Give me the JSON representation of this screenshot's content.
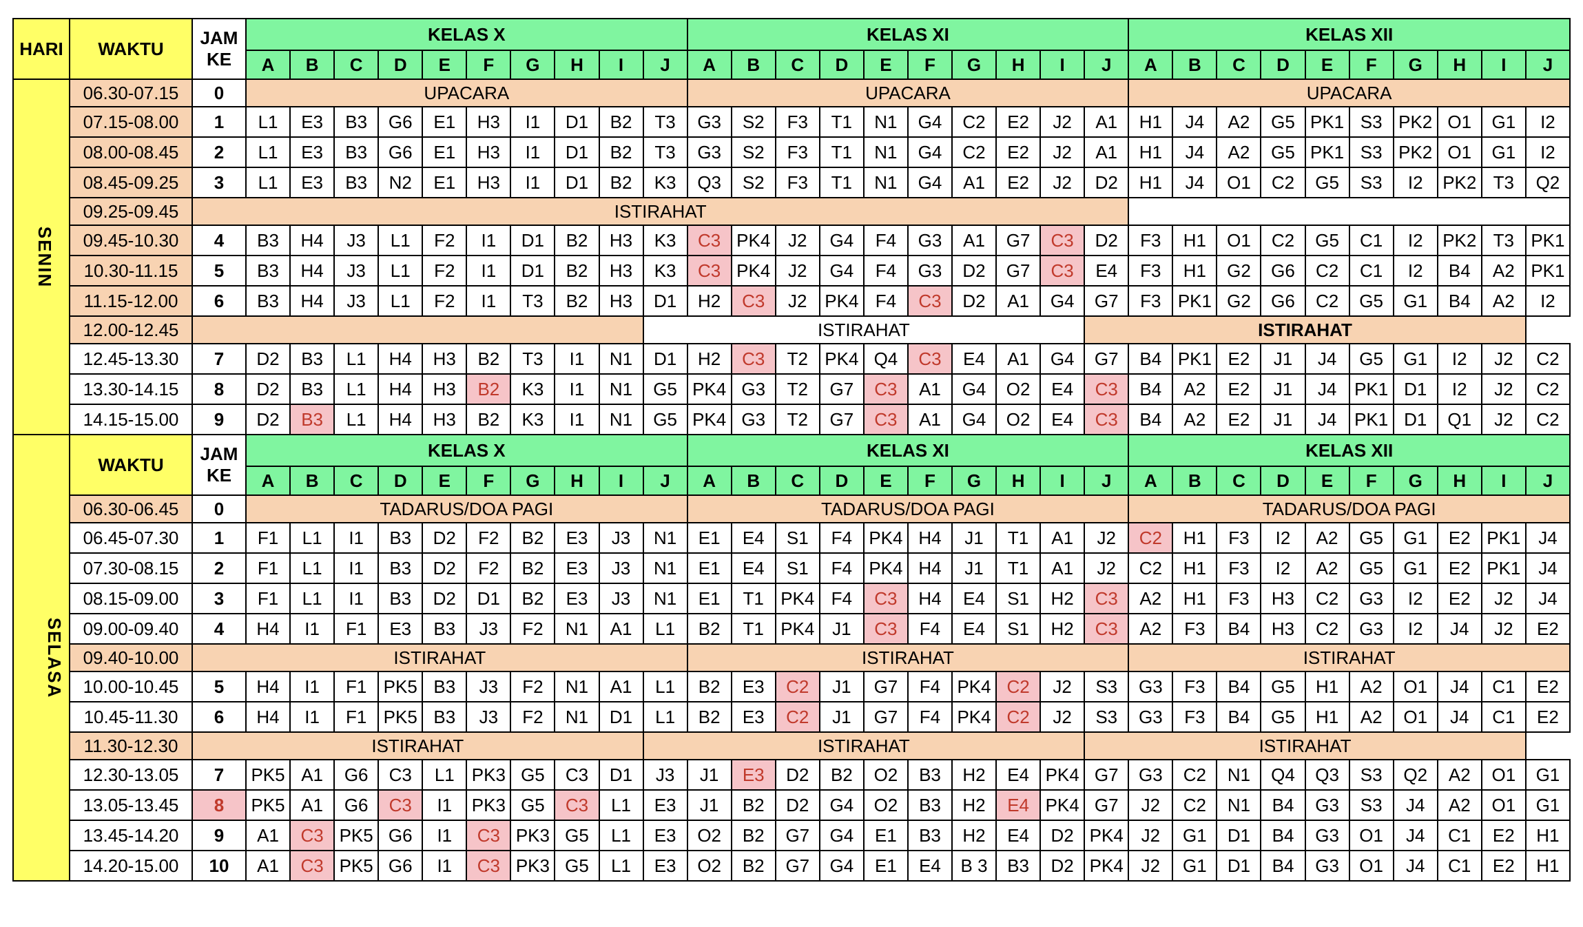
{
  "headers": {
    "hari": "HARI",
    "waktu": "WAKTU",
    "jam1": "JAM",
    "jam2": "KE",
    "kelas": [
      "KELAS X",
      "KELAS XI",
      "KELAS XII"
    ],
    "letters": [
      "A",
      "B",
      "C",
      "D",
      "E",
      "F",
      "G",
      "H",
      "I",
      "J"
    ]
  },
  "highlight_colors": {
    "pink": "#f6c4c8",
    "header_green": "#80f5a0",
    "day_yellow": "#ffff66",
    "time_peach": "#f8d3b2",
    "jam_blue": "#1f5fbf"
  },
  "days": [
    {
      "name": "SENIN",
      "rows": [
        {
          "time": "06.30-07.15",
          "jam": "0",
          "bands": [
            {
              "text": "UPACARA",
              "span": 10
            },
            {
              "text": "UPACARA",
              "span": 10
            },
            {
              "text": "UPACARA",
              "span": 10
            }
          ]
        },
        {
          "time": "07.15-08.00",
          "jam": "1",
          "cells": [
            "L1",
            "E3",
            "B3",
            "G6",
            "E1",
            "H3",
            "I1",
            "D1",
            "B2",
            "T3",
            "G3",
            "S2",
            "F3",
            "T1",
            "N1",
            "G4",
            "C2",
            "E2",
            "J2",
            "A1",
            "H1",
            "J4",
            "A2",
            "G5",
            "PK1",
            "S3",
            "PK2",
            "O1",
            "G1",
            "I2"
          ]
        },
        {
          "time": "08.00-08.45",
          "jam": "2",
          "cells": [
            "L1",
            "E3",
            "B3",
            "G6",
            "E1",
            "H3",
            "I1",
            "D1",
            "B2",
            "T3",
            "G3",
            "S2",
            "F3",
            "T1",
            "N1",
            "G4",
            "C2",
            "E2",
            "J2",
            "A1",
            "H1",
            "J4",
            "A2",
            "G5",
            "PK1",
            "S3",
            "PK2",
            "O1",
            "G1",
            "I2"
          ]
        },
        {
          "time": "08.45-09.25",
          "jam": "3",
          "cells": [
            "L1",
            "E3",
            "B3",
            "N2",
            "E1",
            "H3",
            "I1",
            "D1",
            "B2",
            "K3",
            "Q3",
            "S2",
            "F3",
            "T1",
            "N1",
            "G4",
            "A1",
            "E2",
            "J2",
            "D2",
            "H1",
            "J4",
            "O1",
            "C2",
            "G5",
            "S3",
            "I2",
            "PK2",
            "T3",
            "Q2"
          ]
        },
        {
          "time": "09.25-09.45",
          "bands": [
            {
              "text": "ISTIRAHAT",
              "span": 21,
              "cls": "band"
            },
            {
              "text": "",
              "span": 10,
              "cls": "band w"
            }
          ]
        },
        {
          "time": "09.45-10.30",
          "jam": "4",
          "cells": [
            "B3",
            "H4",
            "J3",
            "L1",
            "F2",
            "I1",
            "D1",
            "B2",
            "H3",
            "K3",
            "C3",
            "PK4",
            "J2",
            "G4",
            "F4",
            "G3",
            "A1",
            "G7",
            "C3",
            "D2",
            "F3",
            "H1",
            "O1",
            "C2",
            "G5",
            "C1",
            "I2",
            "PK2",
            "T3",
            "PK1"
          ],
          "hl": [
            10,
            18
          ]
        },
        {
          "time": "10.30-11.15",
          "jam": "5",
          "cells": [
            "B3",
            "H4",
            "J3",
            "L1",
            "F2",
            "I1",
            "D1",
            "B2",
            "H3",
            "K3",
            "C3",
            "PK4",
            "J2",
            "G4",
            "F4",
            "G3",
            "D2",
            "G7",
            "C3",
            "E4",
            "F3",
            "H1",
            "G2",
            "G6",
            "C2",
            "C1",
            "I2",
            "B4",
            "A2",
            "PK1"
          ],
          "hl": [
            10,
            18
          ]
        },
        {
          "time": "11.15-12.00",
          "jam": "6",
          "cells": [
            "B3",
            "H4",
            "J3",
            "L1",
            "F2",
            "I1",
            "T3",
            "B2",
            "H3",
            "D1",
            "H2",
            "C3",
            "J2",
            "PK4",
            "F4",
            "C3",
            "D2",
            "A1",
            "G4",
            "G7",
            "F3",
            "PK1",
            "G2",
            "G6",
            "C2",
            "G5",
            "G1",
            "B4",
            "A2",
            "I2"
          ],
          "hl": [
            11,
            15
          ]
        },
        {
          "time": "12.00-12.45",
          "bands": [
            {
              "text": "",
              "span": 10,
              "cls": "band"
            },
            {
              "text": "ISTIRAHAT",
              "span": 10,
              "cls": "band w"
            },
            {
              "text": "ISTIRAHAT",
              "span": 10,
              "cls": "band",
              "bold": true
            }
          ]
        },
        {
          "time": "12.45-13.30",
          "jam": "7",
          "plainTime": true,
          "cells": [
            "D2",
            "B3",
            "L1",
            "H4",
            "H3",
            "B2",
            "T3",
            "I1",
            "N1",
            "D1",
            "H2",
            "C3",
            "T2",
            "PK4",
            "Q4",
            "C3",
            "E4",
            "A1",
            "G4",
            "G7",
            "B4",
            "PK1",
            "E2",
            "J1",
            "J4",
            "G5",
            "G1",
            "I2",
            "J2",
            "C2"
          ],
          "hl": [
            11,
            15
          ]
        },
        {
          "time": "13.30-14.15",
          "jam": "8",
          "plainTime": true,
          "cells": [
            "D2",
            "B3",
            "L1",
            "H4",
            "H3",
            "B2",
            "K3",
            "I1",
            "N1",
            "G5",
            "PK4",
            "G3",
            "T2",
            "G7",
            "C3",
            "A1",
            "G4",
            "O2",
            "E4",
            "C3",
            "B4",
            "A2",
            "E2",
            "J1",
            "J4",
            "PK1",
            "D1",
            "I2",
            "J2",
            "C2"
          ],
          "hl": [
            5,
            14,
            19
          ]
        },
        {
          "time": "14.15-15.00",
          "jam": "9",
          "plainTime": true,
          "cells": [
            "D2",
            "B3",
            "L1",
            "H4",
            "H3",
            "B2",
            "K3",
            "I1",
            "N1",
            "G5",
            "PK4",
            "G3",
            "T2",
            "G7",
            "C3",
            "A1",
            "G4",
            "O2",
            "E4",
            "C3",
            "B4",
            "A2",
            "E2",
            "J1",
            "J4",
            "PK1",
            "D1",
            "Q1",
            "J2",
            "C2"
          ],
          "hl": [
            1,
            14,
            19
          ]
        }
      ]
    },
    {
      "name": "SELASA",
      "rows": [
        {
          "time": "06.30-06.45",
          "jam": "0",
          "bands": [
            {
              "text": "TADARUS/DOA PAGI",
              "span": 10
            },
            {
              "text": "TADARUS/DOA PAGI",
              "span": 10
            },
            {
              "text": "TADARUS/DOA PAGI",
              "span": 10
            }
          ]
        },
        {
          "time": "06.45-07.30",
          "jam": "1",
          "plainTime": true,
          "cells": [
            "F1",
            "L1",
            "I1",
            "B3",
            "D2",
            "F2",
            "B2",
            "E3",
            "J3",
            "N1",
            "E1",
            "E4",
            "S1",
            "F4",
            "PK4",
            "H4",
            "J1",
            "T1",
            "A1",
            "J2",
            "C2",
            "H1",
            "F3",
            "I2",
            "A2",
            "G5",
            "G1",
            "E2",
            "PK1",
            "J4"
          ],
          "hl": [
            20
          ]
        },
        {
          "time": "07.30-08.15",
          "jam": "2",
          "plainTime": true,
          "cells": [
            "F1",
            "L1",
            "I1",
            "B3",
            "D2",
            "F2",
            "B2",
            "E3",
            "J3",
            "N1",
            "E1",
            "E4",
            "S1",
            "F4",
            "PK4",
            "H4",
            "J1",
            "T1",
            "A1",
            "J2",
            "C2",
            "H1",
            "F3",
            "I2",
            "A2",
            "G5",
            "G1",
            "E2",
            "PK1",
            "J4"
          ]
        },
        {
          "time": "08.15-09.00",
          "jam": "3",
          "plainTime": true,
          "cells": [
            "F1",
            "L1",
            "I1",
            "B3",
            "D2",
            "D1",
            "B2",
            "E3",
            "J3",
            "N1",
            "E1",
            "T1",
            "PK4",
            "F4",
            "C3",
            "H4",
            "E4",
            "S1",
            "H2",
            "C3",
            "A2",
            "H1",
            "F3",
            "H3",
            "C2",
            "G3",
            "I2",
            "E2",
            "J2",
            "J4"
          ],
          "hl": [
            14,
            19
          ]
        },
        {
          "time": "09.00-09.40",
          "jam": "4",
          "plainTime": true,
          "cells": [
            "H4",
            "I1",
            "F1",
            "E3",
            "B3",
            "J3",
            "F2",
            "N1",
            "A1",
            "L1",
            "B2",
            "T1",
            "PK4",
            "J1",
            "C3",
            "F4",
            "E4",
            "S1",
            "H2",
            "C3",
            "A2",
            "F3",
            "B4",
            "H3",
            "C2",
            "G3",
            "I2",
            "J4",
            "J2",
            "E2"
          ],
          "hl": [
            14,
            19
          ]
        },
        {
          "time": "09.40-10.00",
          "bands": [
            {
              "text": "ISTIRAHAT",
              "span": 11,
              "cls": "band"
            },
            {
              "text": "ISTIRAHAT",
              "span": 10,
              "cls": "band"
            },
            {
              "text": "ISTIRAHAT",
              "span": 10,
              "cls": "band"
            }
          ]
        },
        {
          "time": "10.00-10.45",
          "jam": "5",
          "plainTime": true,
          "cells": [
            "H4",
            "I1",
            "F1",
            "PK5",
            "B3",
            "J3",
            "F2",
            "N1",
            "A1",
            "L1",
            "B2",
            "E3",
            "C2",
            "J1",
            "G7",
            "F4",
            "PK4",
            "C2",
            "J2",
            "S3",
            "G3",
            "F3",
            "B4",
            "G5",
            "H1",
            "A2",
            "O1",
            "J4",
            "C1",
            "E2"
          ],
          "hl": [
            12,
            17
          ]
        },
        {
          "time": "10.45-11.30",
          "jam": "6",
          "plainTime": true,
          "cells": [
            "H4",
            "I1",
            "F1",
            "PK5",
            "B3",
            "J3",
            "F2",
            "N1",
            "D1",
            "L1",
            "B2",
            "E3",
            "C2",
            "J1",
            "G7",
            "F4",
            "PK4",
            "C2",
            "J2",
            "S3",
            "G3",
            "F3",
            "B4",
            "G5",
            "H1",
            "A2",
            "O1",
            "J4",
            "C1",
            "E2"
          ],
          "hl": [
            12,
            17
          ]
        },
        {
          "time": "11.30-12.30",
          "bands": [
            {
              "text": "ISTIRAHAT",
              "span": 10,
              "cls": "band"
            },
            {
              "text": "ISTIRAHAT",
              "span": 10,
              "cls": "band"
            },
            {
              "text": "ISTIRAHAT",
              "span": 10,
              "cls": "band"
            }
          ]
        },
        {
          "time": "12.30-13.05",
          "jam": "7",
          "plainTime": true,
          "cells": [
            "PK5",
            "A1",
            "G6",
            "C3",
            "L1",
            "PK3",
            "G5",
            "C3",
            "D1",
            "J3",
            "J1",
            "E3",
            "D2",
            "B2",
            "O2",
            "B3",
            "H2",
            "E4",
            "PK4",
            "G7",
            "G3",
            "C2",
            "N1",
            "Q4",
            "Q3",
            "S3",
            "Q2",
            "A2",
            "O1",
            "G1"
          ],
          "hl": [
            11
          ]
        },
        {
          "time": "13.05-13.45",
          "jam": "8",
          "jamhl": true,
          "plainTime": true,
          "cells": [
            "PK5",
            "A1",
            "G6",
            "C3",
            "I1",
            "PK3",
            "G5",
            "C3",
            "L1",
            "E3",
            "J1",
            "B2",
            "D2",
            "G4",
            "O2",
            "B3",
            "H2",
            "E4",
            "PK4",
            "G7",
            "J2",
            "C2",
            "N1",
            "B4",
            "G3",
            "S3",
            "J4",
            "A2",
            "O1",
            "G1"
          ],
          "hl": [
            3,
            7,
            17
          ]
        },
        {
          "time": "13.45-14.20",
          "jam": "9",
          "plainTime": true,
          "cells": [
            "A1",
            "C3",
            "PK5",
            "G6",
            "I1",
            "C3",
            "PK3",
            "G5",
            "L1",
            "E3",
            "O2",
            "B2",
            "G7",
            "G4",
            "E1",
            "B3",
            "H2",
            "E4",
            "D2",
            "PK4",
            "J2",
            "G1",
            "D1",
            "B4",
            "G3",
            "O1",
            "J4",
            "C1",
            "E2",
            "H1"
          ],
          "hl": [
            1,
            5
          ]
        },
        {
          "time": "14.20-15.00",
          "jam": "10",
          "plainTime": true,
          "cells": [
            "A1",
            "C3",
            "PK5",
            "G6",
            "I1",
            "C3",
            "PK3",
            "G5",
            "L1",
            "E3",
            "O2",
            "B2",
            "G7",
            "G4",
            "E1",
            "E4",
            "B 3",
            "B3",
            "D2",
            "PK4",
            "J2",
            "G1",
            "D1",
            "B4",
            "G3",
            "O1",
            "J4",
            "C1",
            "E2",
            "H1"
          ],
          "hl": [
            1,
            5
          ]
        }
      ]
    }
  ]
}
